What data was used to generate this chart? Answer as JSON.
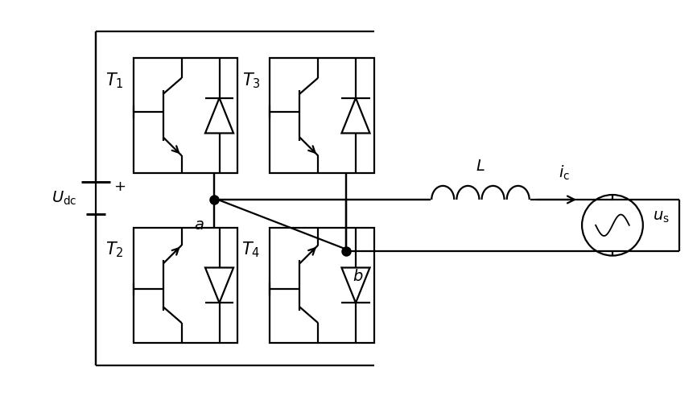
{
  "bg_color": "#ffffff",
  "line_color": "#000000",
  "lw": 1.6,
  "fig_width": 8.66,
  "fig_height": 4.92,
  "dpi": 100
}
